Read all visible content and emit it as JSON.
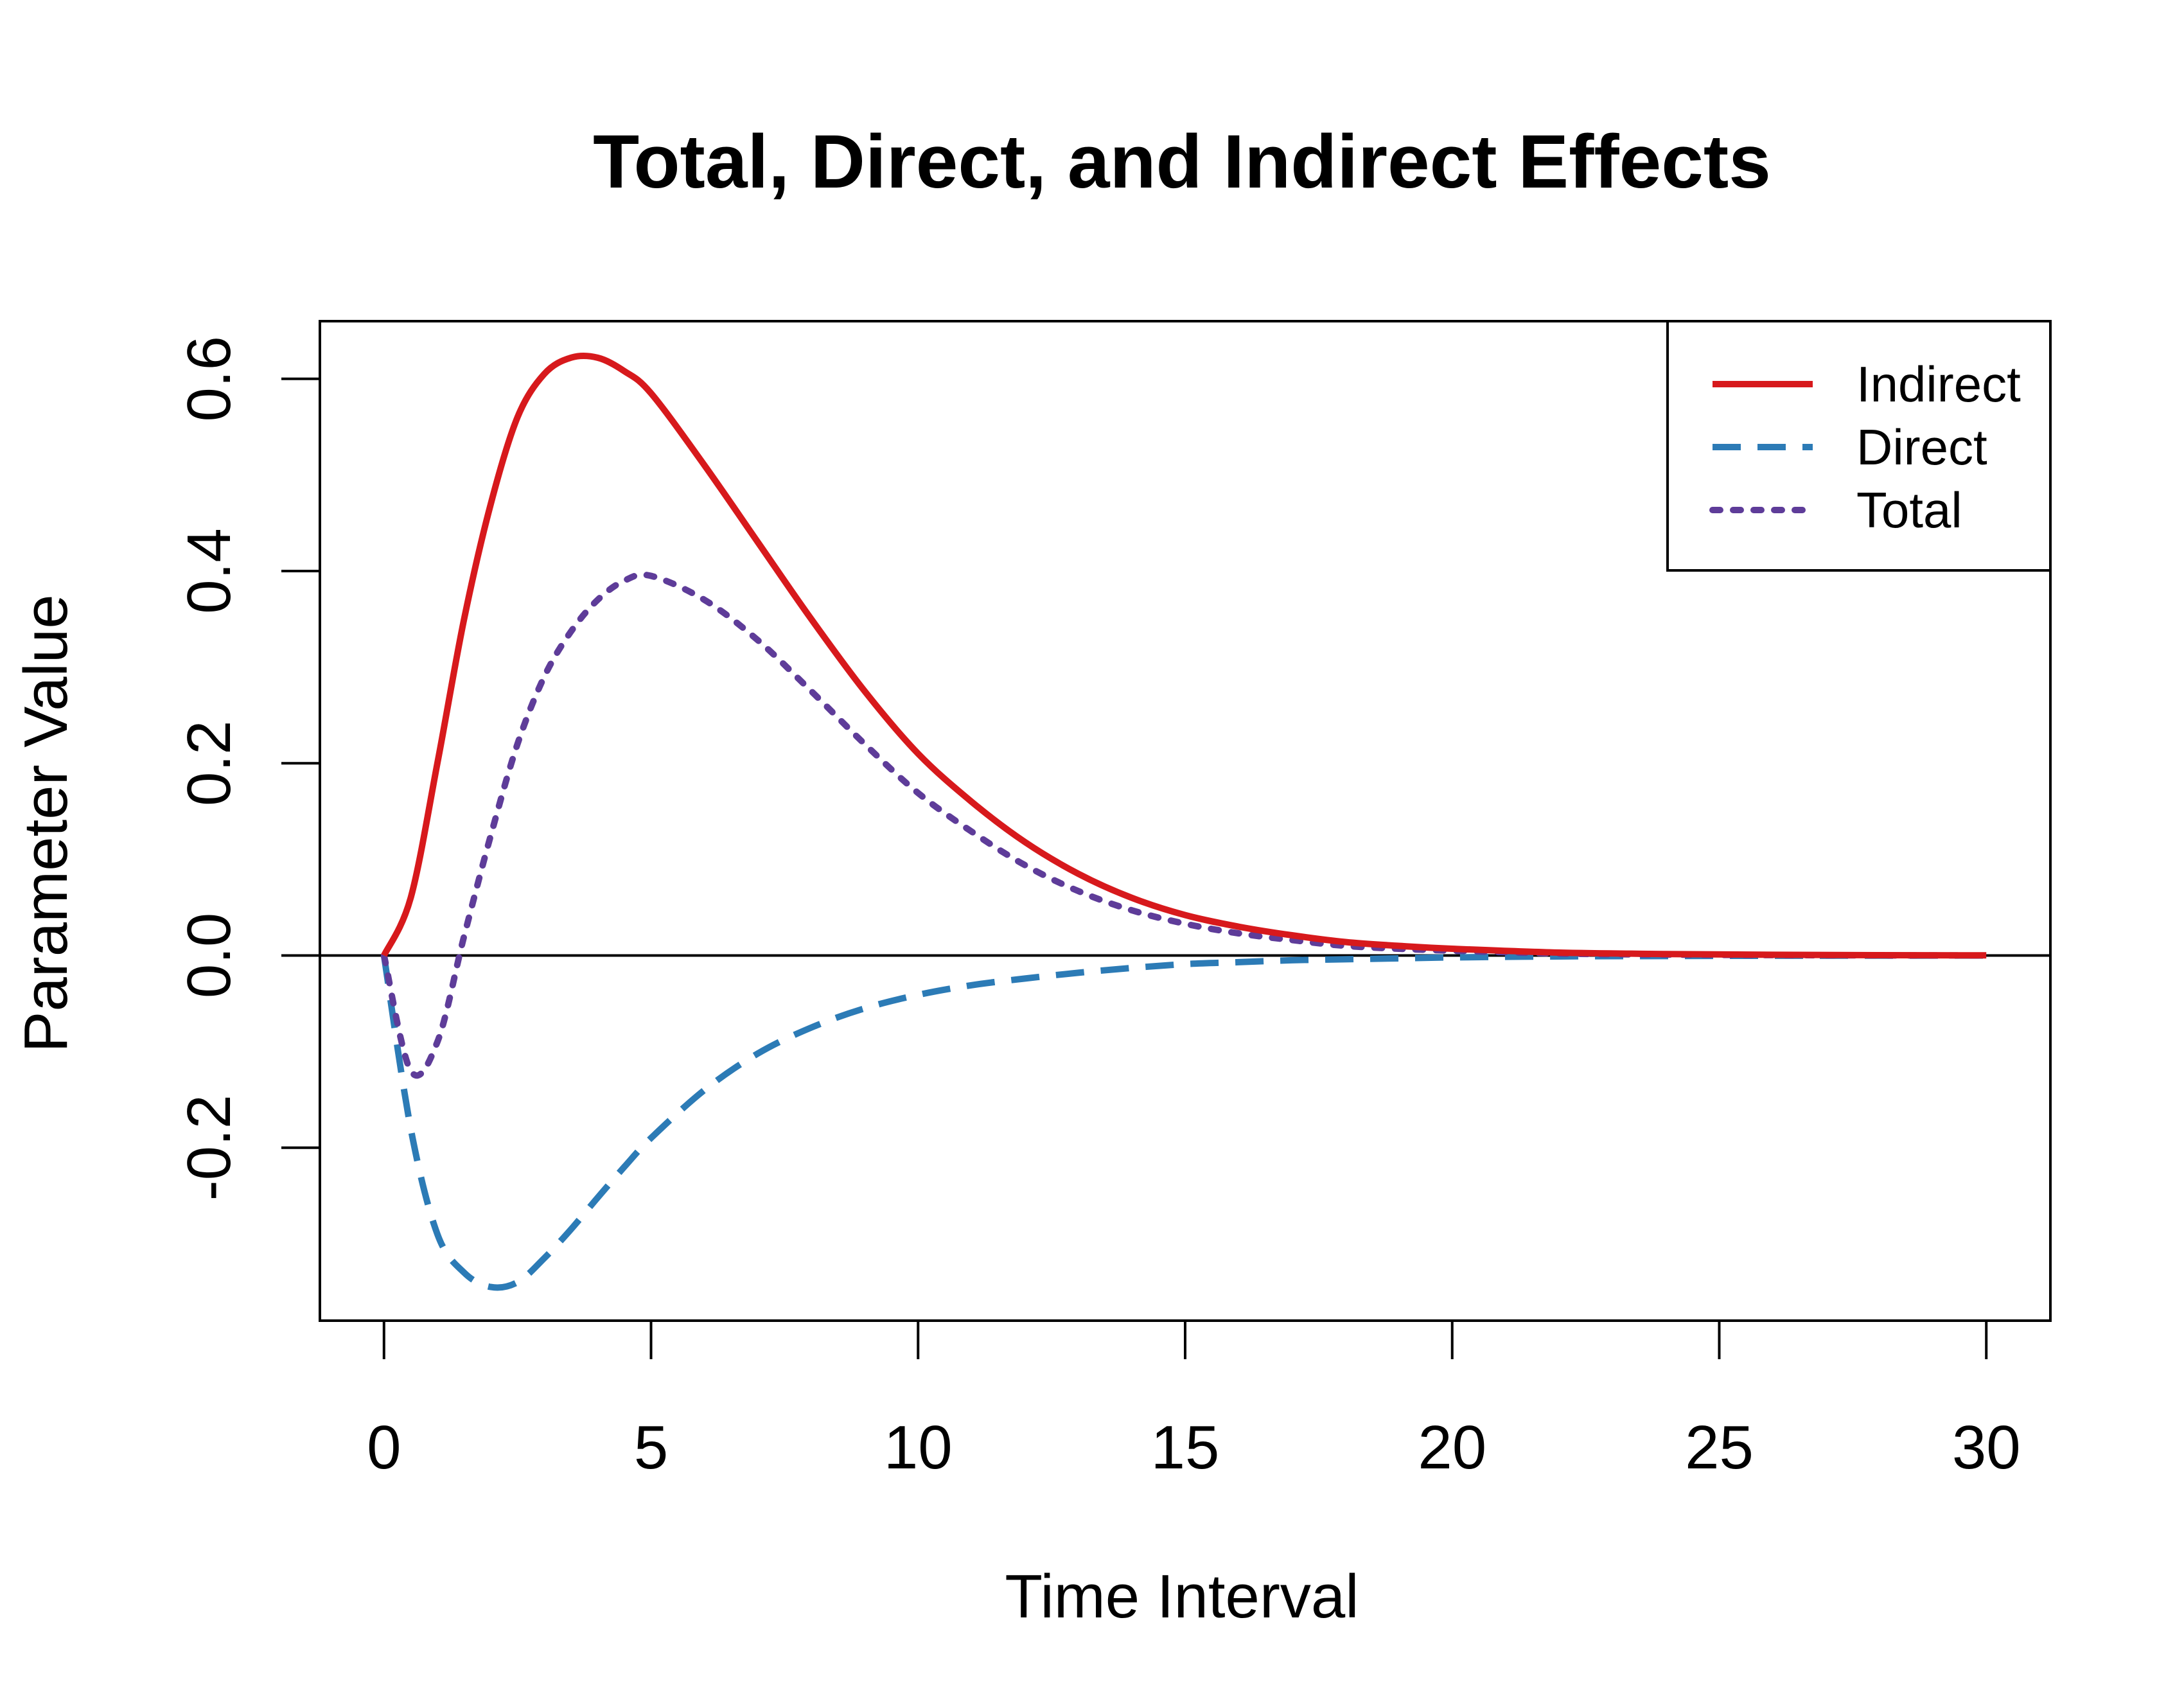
{
  "chart_data": {
    "type": "line",
    "title": "Total, Direct, and Indirect Effects",
    "xlabel": "Time Interval",
    "ylabel": "Parameter Value",
    "xlim": [
      -1.2,
      31.2
    ],
    "ylim": [
      -0.38,
      0.66
    ],
    "x_ticks": [
      "0",
      "5",
      "10",
      "15",
      "20",
      "25",
      "30"
    ],
    "x_tick_values": [
      0,
      5,
      10,
      15,
      20,
      25,
      30
    ],
    "y_ticks": [
      "-0.2",
      "0.0",
      "0.2",
      "0.4",
      "0.6"
    ],
    "y_tick_values": [
      -0.2,
      0.0,
      0.2,
      0.4,
      0.6
    ],
    "hline_y": 0,
    "grid": false,
    "legend_position": "top-right",
    "x": [
      0,
      0.5,
      1,
      1.5,
      2,
      2.5,
      3,
      3.5,
      4,
      4.5,
      5,
      6,
      7,
      8,
      9,
      10,
      11,
      12,
      13,
      14,
      15,
      16,
      17,
      18,
      19,
      20,
      22,
      24,
      26,
      28,
      30
    ],
    "series": [
      {
        "name": "Indirect",
        "color": "#d7191c",
        "dash": "solid",
        "values": [
          0.0,
          0.06,
          0.2,
          0.35,
          0.47,
          0.56,
          0.605,
          0.622,
          0.622,
          0.608,
          0.585,
          0.51,
          0.43,
          0.35,
          0.275,
          0.21,
          0.16,
          0.118,
          0.085,
          0.06,
          0.042,
          0.03,
          0.021,
          0.014,
          0.01,
          0.007,
          0.003,
          0.0015,
          0.0007,
          0.0003,
          0.0001
        ]
      },
      {
        "name": "Direct",
        "color": "#2c7bb6",
        "dash": "dashed",
        "values": [
          0.0,
          -0.18,
          -0.29,
          -0.33,
          -0.345,
          -0.34,
          -0.315,
          -0.285,
          -0.252,
          -0.22,
          -0.19,
          -0.14,
          -0.102,
          -0.075,
          -0.055,
          -0.041,
          -0.031,
          -0.024,
          -0.018,
          -0.013,
          -0.009,
          -0.007,
          -0.005,
          -0.004,
          -0.003,
          -0.002,
          -0.001,
          -0.0006,
          -0.0003,
          -0.0002,
          -0.0001
        ]
      },
      {
        "name": "Total",
        "color": "#5e3c99",
        "dash": "dotted",
        "values": [
          0.0,
          -0.12,
          -0.09,
          0.02,
          0.125,
          0.22,
          0.29,
          0.337,
          0.37,
          0.39,
          0.395,
          0.37,
          0.328,
          0.275,
          0.22,
          0.169,
          0.129,
          0.094,
          0.067,
          0.047,
          0.033,
          0.023,
          0.016,
          0.01,
          0.007,
          0.005,
          0.002,
          0.0009,
          0.0004,
          0.0001,
          0.0
        ]
      }
    ]
  }
}
